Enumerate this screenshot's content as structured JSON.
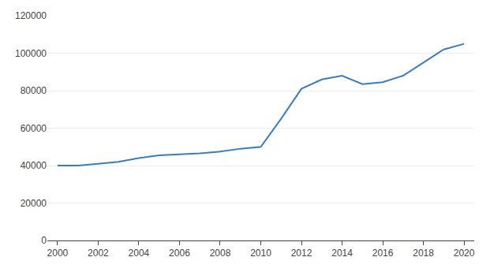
{
  "chart_data": {
    "type": "line",
    "x": [
      2000,
      2001,
      2002,
      2003,
      2004,
      2005,
      2006,
      2007,
      2008,
      2009,
      2010,
      2011,
      2012,
      2013,
      2014,
      2015,
      2016,
      2017,
      2018,
      2019,
      2020
    ],
    "values": [
      40000,
      40000,
      41000,
      42000,
      44000,
      45500,
      46000,
      46500,
      47500,
      49000,
      50000,
      65000,
      81000,
      86000,
      88000,
      83500,
      84500,
      88000,
      95000,
      102000,
      105000
    ],
    "color": "#3A7DBF",
    "xlim": [
      1999.5,
      2020.5
    ],
    "xticks": [
      2000,
      2002,
      2004,
      2006,
      2008,
      2010,
      2012,
      2014,
      2016,
      2018,
      2020
    ],
    "ylim": [
      0,
      120000
    ],
    "yticks": [
      0,
      20000,
      40000,
      60000,
      80000,
      100000,
      120000
    ],
    "grid": "y"
  }
}
